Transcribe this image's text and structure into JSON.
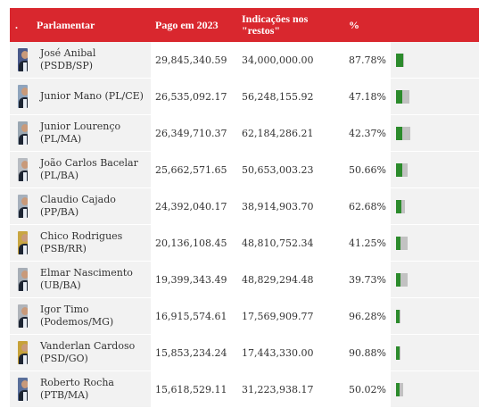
{
  "table": {
    "headers": {
      "dot": ".",
      "name": "Parlamentar",
      "paid": "Pago em 2023",
      "indications": "Indicações nos \"restos\"",
      "pct": "%"
    }
  },
  "colors": {
    "header": "#d9272e",
    "paid_bar": "#2c8b2c",
    "indications_bar": "#c2c2c2"
  },
  "chart_data": {
    "type": "table",
    "columns": [
      "Parlamentar",
      "Pago em 2023",
      "Indicações nos \"restos\"",
      "%"
    ],
    "rows": [
      {
        "name_line1": "José Anibal (PSDB/SP)",
        "name_line2": "",
        "paid": "29,845,340.59",
        "indications": "34,000,000.00",
        "pct": "87.78%",
        "paid_value": 29845340.59,
        "ind_value": 34000000.0,
        "photo_bg": "#4a5a8a"
      },
      {
        "name_line1": "Junior Mano (PL/CE)",
        "name_line2": "",
        "paid": "26,535,092.17",
        "indications": "56,248,155.92",
        "pct": "47.18%",
        "paid_value": 26535092.17,
        "ind_value": 56248155.92,
        "photo_bg": "#8fa4bd"
      },
      {
        "name_line1": "Junior Lourenço",
        "name_line2": "(PL/MA)",
        "paid": "26,349,710.37",
        "indications": "62,184,286.21",
        "pct": "42.37%",
        "paid_value": 26349710.37,
        "ind_value": 62184286.21,
        "photo_bg": "#9aa7b2"
      },
      {
        "name_line1": "João Carlos Bacelar",
        "name_line2": "(PL/BA)",
        "paid": "25,662,571.65",
        "indications": "50,653,003.23",
        "pct": "50.66%",
        "paid_value": 25662571.65,
        "ind_value": 50653003.23,
        "photo_bg": "#b8bcc2"
      },
      {
        "name_line1": "Claudio Cajado (PP/BA)",
        "name_line2": "",
        "paid": "24,392,040.17",
        "indications": "38,914,903.70",
        "pct": "62.68%",
        "paid_value": 24392040.17,
        "ind_value": 38914903.7,
        "photo_bg": "#a6b0bc"
      },
      {
        "name_line1": "Chico Rodrigues",
        "name_line2": "(PSB/RR)",
        "paid": "20,136,108.45",
        "indications": "48,810,752.34",
        "pct": "41.25%",
        "paid_value": 20136108.45,
        "ind_value": 48810752.34,
        "photo_bg": "#c9a642"
      },
      {
        "name_line1": "Elmar Nascimento",
        "name_line2": "(UB/BA)",
        "paid": "19,399,343.49",
        "indications": "48,829,294.48",
        "pct": "39.73%",
        "paid_value": 19399343.49,
        "ind_value": 48829294.48,
        "photo_bg": "#a7aeb6"
      },
      {
        "name_line1": "Igor Timo",
        "name_line2": "(Podemos/MG)",
        "paid": "16,915,574.61",
        "indications": "17,569,909.77",
        "pct": "96.28%",
        "paid_value": 16915574.61,
        "ind_value": 17569909.77,
        "photo_bg": "#b0b4ba"
      },
      {
        "name_line1": "Vanderlan Cardoso",
        "name_line2": "(PSD/GO)",
        "paid": "15,853,234.24",
        "indications": "17,443,330.00",
        "pct": "90.88%",
        "paid_value": 15853234.24,
        "ind_value": 17443330.0,
        "photo_bg": "#c7a23a"
      },
      {
        "name_line1": "Roberto Rocha",
        "name_line2": "(PTB/MA)",
        "paid": "15,618,529.11",
        "indications": "31,223,938.17",
        "pct": "50.02%",
        "paid_value": 15618529.11,
        "ind_value": 31223938.17,
        "photo_bg": "#5a6f9a"
      }
    ]
  }
}
